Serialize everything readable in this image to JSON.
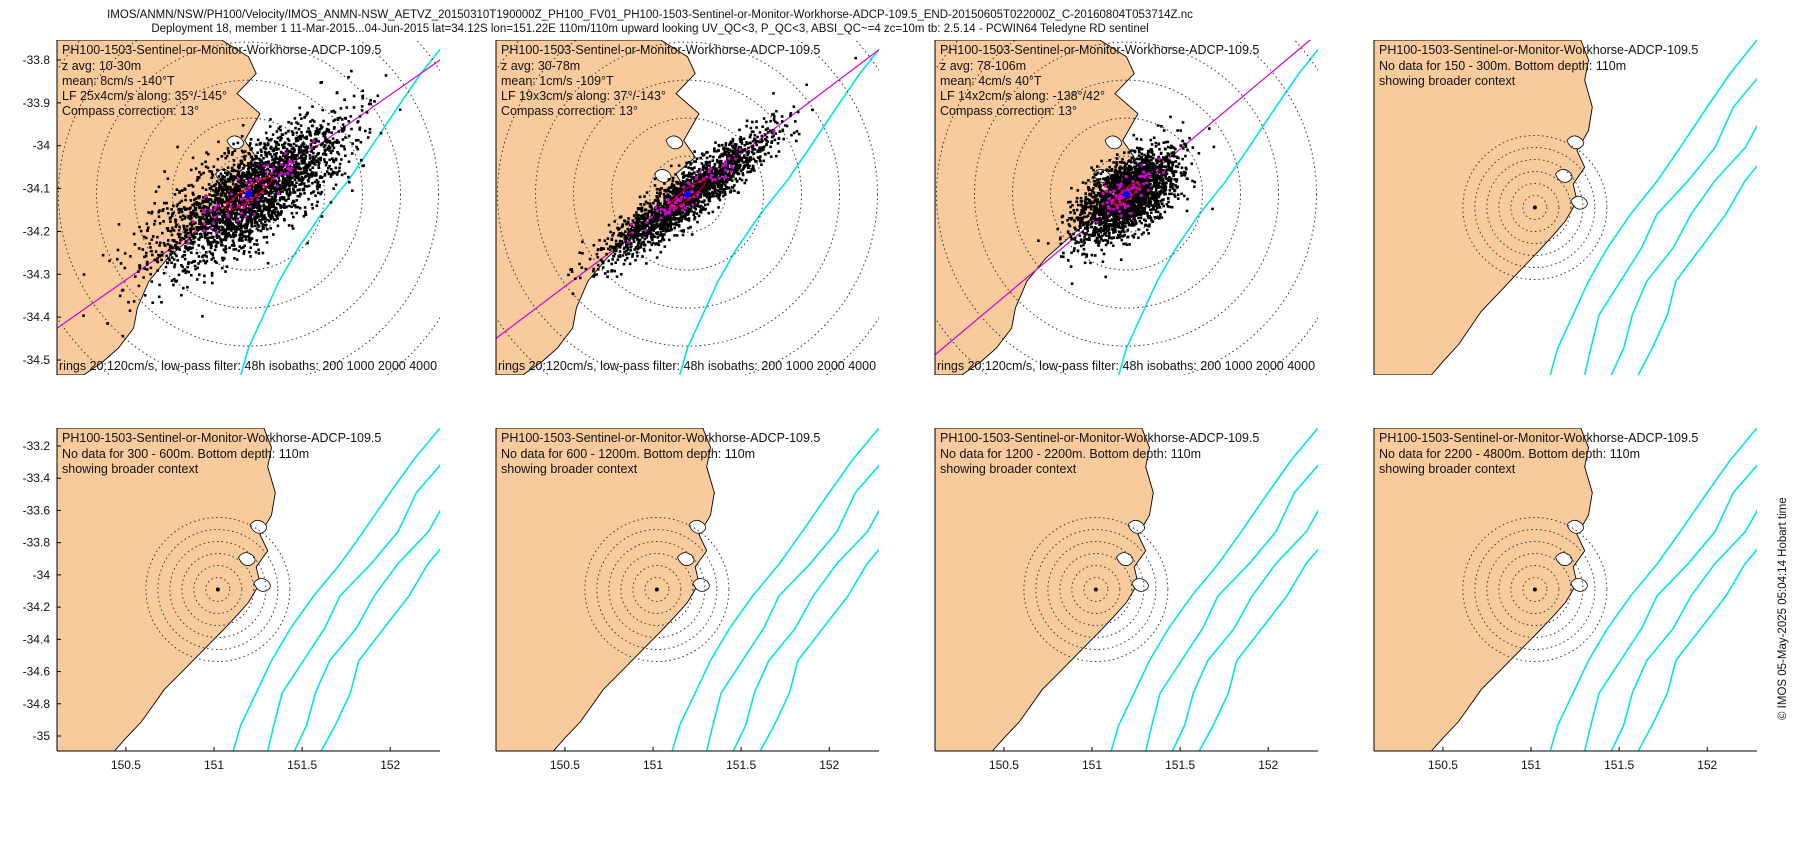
{
  "header": {
    "line1": "IMOS/ANMN/NSW/PH100/Velocity/IMOS_ANMN-NSW_AETVZ_20150310T190000Z_PH100_FV01_PH100-1503-Sentinel-or-Monitor-Workhorse-ADCP-109.5_END-20150605T022000Z_C-20160804T053714Z.nc",
    "line2": "Deployment 18, member 1 11-Mar-2015...04-Jun-2015 lat=34.12S lon=151.22E 110m/110m upward looking UV_QC<3, P_QC<3, ABSI_QC~=4 zc=10m tb: 2.5.14 - PCWIN64 Teledyne RD sentinel"
  },
  "credit": "© IMOS 05-May-2025 05:04:14 Hobart time",
  "colors": {
    "land": "#f9cb9c",
    "isobath": "#00e5e5",
    "axis_line": "#d000d0",
    "ellipse": "#cc0000",
    "points": "#000000",
    "mean_point": "#0000ff",
    "lowpass_points": "#d000d0"
  },
  "chart_data": [
    {
      "type": "scatter",
      "panel": "top-1",
      "title": "PH100-1503-Sentinel-or-Monitor-Workhorse-ADCP-109.5",
      "lines": [
        "z avg: 10-30m",
        "mean: 8cm/s -140°T",
        "LF 25x4cm/s along: 35°/-145°",
        "Compass correction: 13°"
      ],
      "footer": "rings 20:120cm/s, low-pass filter: 48h isobaths: 200 1000 2000 4000",
      "yticks": [
        "-33.8",
        "-33.9",
        "-34",
        "-34.1",
        "-34.2",
        "-34.3",
        "-34.4",
        "-34.5"
      ],
      "xticks": [],
      "has_data": true,
      "cloud": {
        "major": 130,
        "minor": 48,
        "angle_deg": 35,
        "center": [
          151.21,
          -34.13
        ],
        "count": 2600
      },
      "ellipse": {
        "major": 28,
        "minor": 6
      }
    },
    {
      "type": "scatter",
      "panel": "top-2",
      "title": "PH100-1503-Sentinel-or-Monitor-Workhorse-ADCP-109.5",
      "lines": [
        "z avg: 30-78m",
        "mean: 1cm/s -109°T",
        "LF 19x3cm/s along: 37°/-143°",
        "Compass correction: 13°"
      ],
      "footer": "rings 20:120cm/s, low-pass filter: 48h isobaths: 200 1000 2000 4000",
      "yticks": [],
      "xticks": [],
      "has_data": true,
      "cloud": {
        "major": 120,
        "minor": 24,
        "angle_deg": 37,
        "center": [
          151.21,
          -34.13
        ],
        "count": 2000
      },
      "ellipse": {
        "major": 22,
        "minor": 5
      }
    },
    {
      "type": "scatter",
      "panel": "top-3",
      "title": "PH100-1503-Sentinel-or-Monitor-Workhorse-ADCP-109.5",
      "lines": [
        "z avg: 78-106m",
        "mean: 4cm/s 40°T",
        "LF 14x2cm/s along: -138°/42°",
        "Compass correction: 13°"
      ],
      "footer": "rings 20:120cm/s, low-pass filter: 48h isobaths: 200 1000 2000 4000",
      "yticks": [],
      "xticks": [],
      "has_data": true,
      "cloud": {
        "major": 70,
        "minor": 36,
        "angle_deg": 40,
        "center": [
          151.22,
          -34.12
        ],
        "count": 2300
      },
      "ellipse": {
        "major": 16,
        "minor": 5
      }
    },
    {
      "type": "scatter",
      "panel": "top-4",
      "title": "PH100-1503-Sentinel-or-Monitor-Workhorse-ADCP-109.5",
      "lines": [
        "No data for 150 - 300m. Bottom depth: 110m",
        "showing broader context"
      ],
      "footer": "",
      "yticks": [],
      "xticks": [],
      "has_data": false
    },
    {
      "type": "scatter",
      "panel": "bottom-1",
      "title": "PH100-1503-Sentinel-or-Monitor-Workhorse-ADCP-109.5",
      "lines": [
        "No data for 300 - 600m. Bottom depth: 110m",
        "showing broader context"
      ],
      "footer": "",
      "yticks": [
        "-33.2",
        "-33.4",
        "-33.6",
        "-33.8",
        "-34",
        "-34.2",
        "-34.4",
        "-34.6",
        "-34.8",
        "-35"
      ],
      "xticks": [
        "150.5",
        "151",
        "151.5",
        "152"
      ],
      "has_data": false
    },
    {
      "type": "scatter",
      "panel": "bottom-2",
      "title": "PH100-1503-Sentinel-or-Monitor-Workhorse-ADCP-109.5",
      "lines": [
        "No data for 600 - 1200m. Bottom depth: 110m",
        "showing broader context"
      ],
      "footer": "",
      "yticks": [],
      "xticks": [
        "150.5",
        "151",
        "151.5",
        "152"
      ],
      "has_data": false
    },
    {
      "type": "scatter",
      "panel": "bottom-3",
      "title": "PH100-1503-Sentinel-or-Monitor-Workhorse-ADCP-109.5",
      "lines": [
        "No data for 1200 - 2200m. Bottom depth: 110m",
        "showing broader context"
      ],
      "footer": "",
      "yticks": [],
      "xticks": [
        "150.5",
        "151",
        "151.5",
        "152"
      ],
      "has_data": false
    },
    {
      "type": "scatter",
      "panel": "bottom-4",
      "title": "PH100-1503-Sentinel-or-Monitor-Workhorse-ADCP-109.5",
      "lines": [
        "No data for 2200 - 4800m. Bottom depth: 110m",
        "showing broader context"
      ],
      "footer": "",
      "yticks": [],
      "xticks": [
        "150.5",
        "151",
        "151.5",
        "152"
      ],
      "has_data": false
    }
  ]
}
